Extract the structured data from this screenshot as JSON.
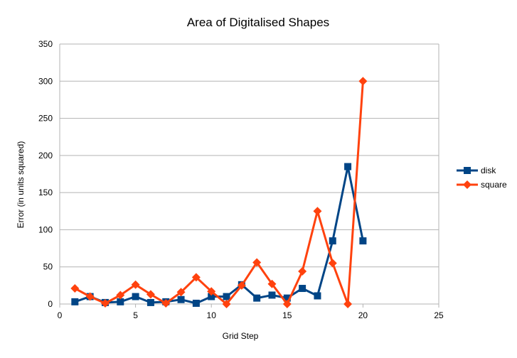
{
  "chart_data": {
    "type": "line",
    "title": "Area of Digitalised Shapes",
    "xlabel": "Grid Step",
    "ylabel": "Error (in units squared)",
    "xlim": [
      0,
      25
    ],
    "ylim": [
      0,
      350
    ],
    "x_ticks": [
      0,
      5,
      10,
      15,
      20,
      25
    ],
    "y_ticks": [
      0,
      50,
      100,
      150,
      200,
      250,
      300,
      350
    ],
    "grid": "horizontal",
    "legend_position": "right",
    "series": [
      {
        "name": "disk",
        "color": "#004586",
        "marker": "square",
        "x": [
          1,
          2,
          3,
          4,
          5,
          6,
          7,
          8,
          9,
          10,
          11,
          12,
          13,
          14,
          15,
          16,
          17,
          18,
          19,
          20
        ],
        "y": [
          3,
          10,
          2,
          3,
          10,
          2,
          3,
          6,
          1,
          10,
          10,
          26,
          8,
          12,
          8,
          21,
          11,
          85,
          185,
          85
        ]
      },
      {
        "name": "square",
        "color": "#ff420e",
        "marker": "diamond",
        "x": [
          1,
          2,
          3,
          4,
          5,
          6,
          7,
          8,
          9,
          10,
          11,
          12,
          13,
          14,
          15,
          16,
          17,
          18,
          19,
          20
        ],
        "y": [
          21,
          10,
          1,
          12,
          26,
          13,
          1,
          16,
          36,
          17,
          0,
          25,
          56,
          27,
          0,
          44,
          125,
          55,
          0,
          300
        ]
      }
    ]
  }
}
